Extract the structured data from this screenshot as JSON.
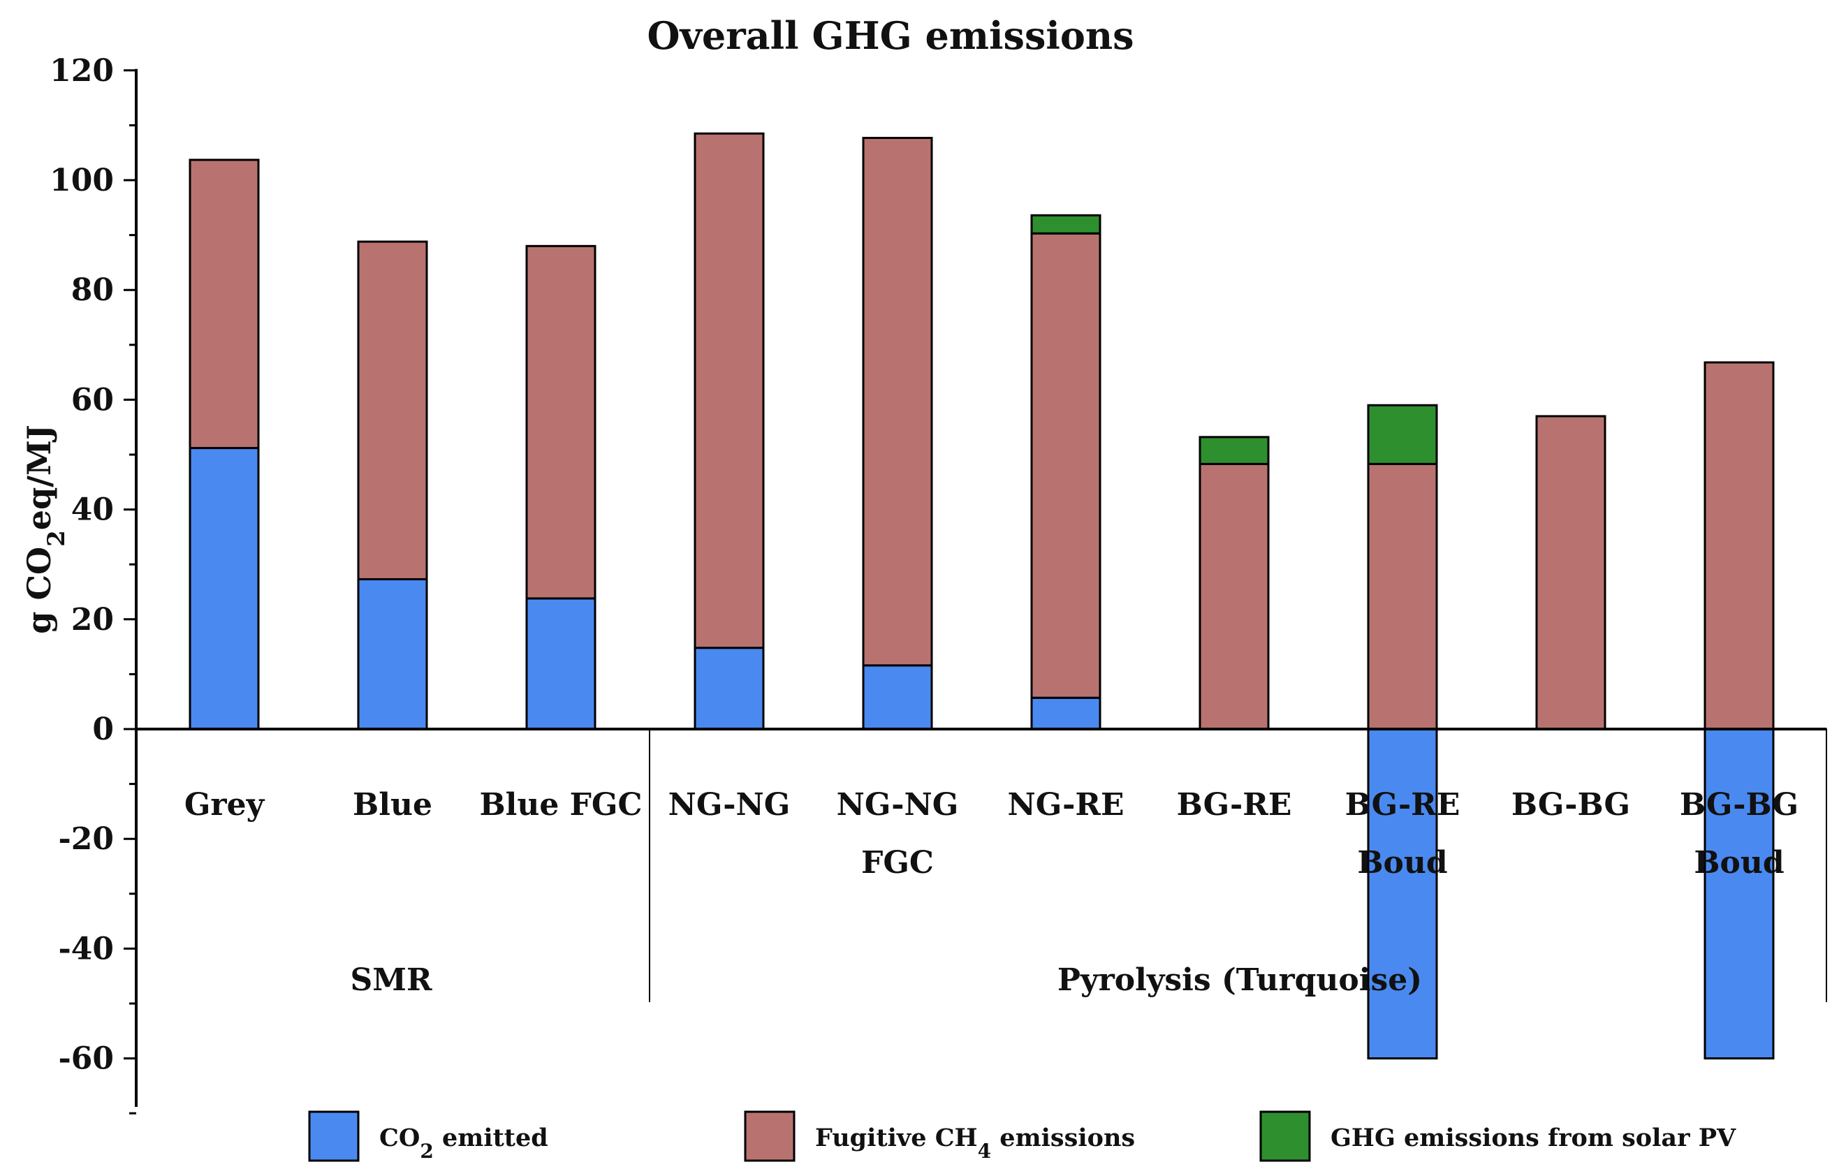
{
  "chart_data": {
    "type": "bar",
    "stacked": true,
    "title": "Overall GHG emissions",
    "ylabel": {
      "base": "g CO",
      "sub": "2",
      "rest": "eq/MJ"
    },
    "ylim": [
      -70,
      120
    ],
    "yticks": [
      -60,
      -40,
      -20,
      0,
      20,
      40,
      60,
      80,
      100,
      120
    ],
    "ytick_labels": [
      "-60",
      "-40",
      "-20",
      "0",
      "20",
      "40",
      "60",
      "80",
      "100",
      "120"
    ],
    "categories": [
      {
        "line1": "Grey",
        "line2": ""
      },
      {
        "line1": "Blue",
        "line2": ""
      },
      {
        "line1": "Blue FGC",
        "line2": ""
      },
      {
        "line1": "NG-NG",
        "line2": ""
      },
      {
        "line1": "NG-NG",
        "line2": "FGC"
      },
      {
        "line1": "NG-RE",
        "line2": ""
      },
      {
        "line1": "BG-RE",
        "line2": ""
      },
      {
        "line1": "BG-RE",
        "line2": "Boud"
      },
      {
        "line1": "BG-BG",
        "line2": ""
      },
      {
        "line1": "BG-BG",
        "line2": "Boud"
      }
    ],
    "groups": [
      {
        "label": "SMR",
        "start": 0,
        "end": 2
      },
      {
        "label": "Pyrolysis (Turquoise)",
        "start": 3,
        "end": 9
      }
    ],
    "series": [
      {
        "name": "CO2 emitted",
        "color": "#4a8af0",
        "values": [
          51.2,
          27.3,
          23.8,
          14.8,
          11.6,
          5.7,
          0,
          -60,
          0,
          -60
        ]
      },
      {
        "name": "Fugitive CH4 emissions",
        "color": "#b87370",
        "values": [
          52.5,
          61.5,
          64.2,
          93.7,
          96.1,
          84.6,
          48.3,
          48.3,
          57.0,
          66.8
        ]
      },
      {
        "name": "GHG emissions from solar PV",
        "color": "#2e8f2e",
        "values": [
          0,
          0,
          0,
          0,
          0,
          3.3,
          4.9,
          10.7,
          0,
          0
        ]
      }
    ],
    "legend": {
      "position": "bottom",
      "items": [
        {
          "base": "CO",
          "sub": "2",
          "rest": " emitted",
          "color": "#4a8af0"
        },
        {
          "base": "Fugitive CH",
          "sub": "4",
          "rest": " emissions",
          "color": "#b87370"
        },
        {
          "base": "GHG emissions from solar PV",
          "sub": "",
          "rest": "",
          "color": "#2e8f2e"
        }
      ]
    }
  }
}
